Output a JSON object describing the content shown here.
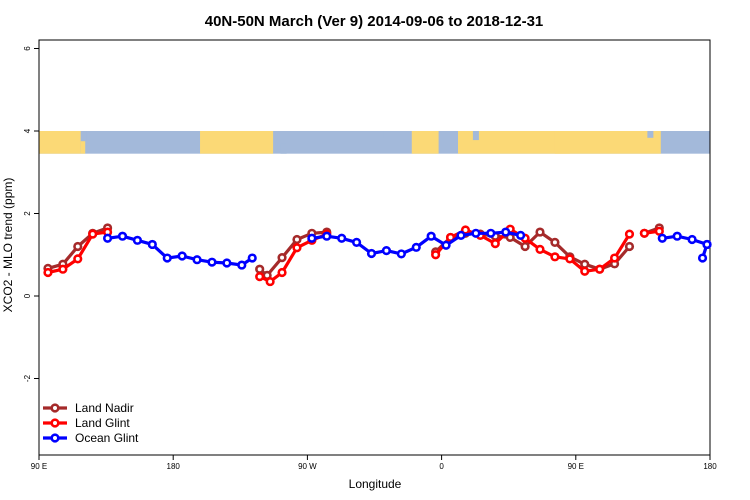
{
  "chart_data": {
    "type": "line",
    "title": "40N-50N March (Ver 9)   2014-09-06 to 2018-12-31",
    "xlabel": "Longitude",
    "ylabel": "XCO2 - MLO trend (ppm)",
    "xlim": [
      90,
      540
    ],
    "ylim": [
      -4,
      6.3
    ],
    "x_ticks": [
      {
        "value": 90,
        "label": "90 E"
      },
      {
        "value": 180,
        "label": "180"
      },
      {
        "value": 270,
        "label": "90 W"
      },
      {
        "value": 360,
        "label": "0"
      },
      {
        "value": 450,
        "label": "90 E"
      },
      {
        "value": 540,
        "label": "180"
      }
    ],
    "y_ticks": [
      {
        "value": -2,
        "label": "-2"
      },
      {
        "value": 0,
        "label": "0"
      },
      {
        "value": 2,
        "label": "2"
      },
      {
        "value": 4,
        "label": "4"
      },
      {
        "value": 6,
        "label": "6"
      }
    ],
    "map_band": {
      "y_from": 3.45,
      "y_to": 4.0,
      "land_color": "#fbd976",
      "ocean_color": "#a3b9da"
    },
    "legend": {
      "position": "bottom-left"
    },
    "series": [
      {
        "name": "Land Nadir",
        "color": "#a52a2a",
        "segments": [
          {
            "x": [
              96,
              106,
              116,
              126,
              136
            ],
            "y": [
              0.67,
              0.77,
              1.2,
              1.52,
              1.65
            ]
          },
          {
            "x": [
              238,
              243,
              253,
              263,
              273,
              283
            ],
            "y": [
              0.65,
              0.5,
              0.93,
              1.37,
              1.52,
              1.55
            ]
          },
          {
            "x": [
              356,
              366,
              376,
              386,
              396,
              406,
              416,
              426,
              436,
              446,
              456,
              466,
              476,
              486
            ],
            "y": [
              1.07,
              1.42,
              1.52,
              1.5,
              1.45,
              1.42,
              1.2,
              1.55,
              1.3,
              0.95,
              0.77,
              0.65,
              0.78,
              1.2
            ]
          },
          {
            "x": [
              496,
              506
            ],
            "y": [
              1.52,
              1.65
            ]
          }
        ]
      },
      {
        "name": "Land Glint",
        "color": "#ff0000",
        "segments": [
          {
            "x": [
              96,
              106,
              116,
              126,
              136
            ],
            "y": [
              0.57,
              0.65,
              0.9,
              1.5,
              1.55
            ]
          },
          {
            "x": [
              238,
              245,
              253,
              263,
              273,
              283
            ],
            "y": [
              0.47,
              0.35,
              0.57,
              1.17,
              1.35,
              1.5
            ]
          },
          {
            "x": [
              356,
              366,
              376,
              386,
              396,
              406,
              416,
              426,
              436,
              446,
              456,
              466,
              476,
              486
            ],
            "y": [
              1.0,
              1.42,
              1.6,
              1.47,
              1.27,
              1.62,
              1.4,
              1.13,
              0.95,
              0.9,
              0.6,
              0.65,
              0.92,
              1.5
            ]
          },
          {
            "x": [
              496,
              506
            ],
            "y": [
              1.52,
              1.57
            ]
          }
        ]
      },
      {
        "name": "Ocean Glint",
        "color": "#0000ff",
        "segments": [
          {
            "x": [
              136,
              146,
              156,
              166,
              176,
              186,
              196,
              206,
              216,
              226,
              233
            ],
            "y": [
              1.4,
              1.45,
              1.35,
              1.25,
              0.92,
              0.97,
              0.88,
              0.82,
              0.8,
              0.75,
              0.92
            ]
          },
          {
            "x": [
              273,
              283,
              293,
              303,
              313,
              323,
              333,
              343,
              353,
              363,
              373,
              383,
              393,
              403,
              413
            ],
            "y": [
              1.4,
              1.45,
              1.4,
              1.3,
              1.03,
              1.1,
              1.02,
              1.18,
              1.45,
              1.23,
              1.47,
              1.52,
              1.52,
              1.55,
              1.47
            ]
          },
          {
            "x": [
              508,
              518,
              528,
              538
            ],
            "y": [
              1.4,
              1.45,
              1.37,
              1.25
            ]
          },
          {
            "x": [
              538,
              535
            ],
            "y": [
              1.25,
              0.92
            ]
          }
        ]
      }
    ]
  }
}
